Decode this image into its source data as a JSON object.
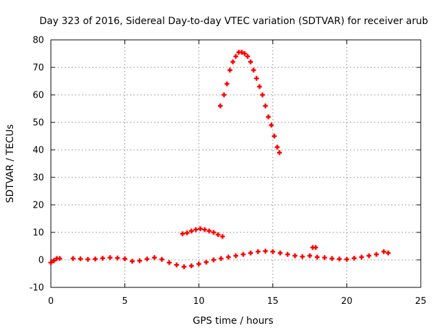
{
  "chart_data": {
    "type": "scatter",
    "title": "Day 323 of 2016, Sidereal Day-to-day VTEC variation (SDTVAR) for receiver arub",
    "xlabel": "GPS time / hours",
    "ylabel": "SDTVAR / TECUs",
    "xlim": [
      0,
      25
    ],
    "ylim": [
      -10,
      80
    ],
    "xticks": [
      0,
      5,
      10,
      15,
      20,
      25
    ],
    "yticks": [
      -10,
      0,
      10,
      20,
      30,
      40,
      50,
      60,
      70,
      80
    ],
    "grid": true,
    "marker": "plus",
    "color": "#ff0000",
    "series": [
      {
        "name": "SDTVAR",
        "points": [
          [
            0.0,
            -1.0
          ],
          [
            0.2,
            -0.3
          ],
          [
            0.4,
            0.5
          ],
          [
            0.6,
            0.5
          ],
          [
            1.5,
            0.5
          ],
          [
            2.0,
            0.4
          ],
          [
            2.5,
            0.2
          ],
          [
            3.0,
            0.3
          ],
          [
            3.5,
            0.6
          ],
          [
            4.0,
            0.8
          ],
          [
            4.5,
            0.7
          ],
          [
            5.0,
            0.4
          ],
          [
            5.5,
            -0.5
          ],
          [
            6.0,
            -0.3
          ],
          [
            6.5,
            0.3
          ],
          [
            7.0,
            0.8
          ],
          [
            7.5,
            0.2
          ],
          [
            8.0,
            -1.0
          ],
          [
            8.5,
            -1.8
          ],
          [
            9.0,
            -2.5
          ],
          [
            9.5,
            -2.2
          ],
          [
            10.0,
            -1.5
          ],
          [
            10.5,
            -0.8
          ],
          [
            11.0,
            0.0
          ],
          [
            11.5,
            0.5
          ],
          [
            12.0,
            1.0
          ],
          [
            12.5,
            1.5
          ],
          [
            13.0,
            2.0
          ],
          [
            13.5,
            2.5
          ],
          [
            14.0,
            3.0
          ],
          [
            14.5,
            3.2
          ],
          [
            15.0,
            3.0
          ],
          [
            15.5,
            2.5
          ],
          [
            16.0,
            2.0
          ],
          [
            16.5,
            1.5
          ],
          [
            17.0,
            1.2
          ],
          [
            17.5,
            1.5
          ],
          [
            18.0,
            1.0
          ],
          [
            18.5,
            0.8
          ],
          [
            19.0,
            0.5
          ],
          [
            19.5,
            0.3
          ],
          [
            20.0,
            0.2
          ],
          [
            20.5,
            0.6
          ],
          [
            21.0,
            1.0
          ],
          [
            21.5,
            1.5
          ],
          [
            22.0,
            2.0
          ],
          [
            22.5,
            3.0
          ],
          [
            22.8,
            2.5
          ],
          [
            17.7,
            4.5
          ],
          [
            17.9,
            4.5
          ],
          [
            8.9,
            9.5
          ],
          [
            9.2,
            9.8
          ],
          [
            9.5,
            10.5
          ],
          [
            9.8,
            11.0
          ],
          [
            10.1,
            11.3
          ],
          [
            10.4,
            11.0
          ],
          [
            10.7,
            10.5
          ],
          [
            11.0,
            10.0
          ],
          [
            11.3,
            9.2
          ],
          [
            11.6,
            8.5
          ],
          [
            11.45,
            56.0
          ],
          [
            11.7,
            60.0
          ],
          [
            11.9,
            64.0
          ],
          [
            12.1,
            69.0
          ],
          [
            12.3,
            72.0
          ],
          [
            12.5,
            74.0
          ],
          [
            12.7,
            75.5
          ],
          [
            12.9,
            75.5
          ],
          [
            13.1,
            75.0
          ],
          [
            13.3,
            74.0
          ],
          [
            13.5,
            72.0
          ],
          [
            13.7,
            69.0
          ],
          [
            13.9,
            66.0
          ],
          [
            14.1,
            63.0
          ],
          [
            14.3,
            60.0
          ],
          [
            14.5,
            56.0
          ],
          [
            14.7,
            52.0
          ],
          [
            14.9,
            49.0
          ],
          [
            15.1,
            45.0
          ],
          [
            15.3,
            41.0
          ],
          [
            15.45,
            39.0
          ]
        ]
      }
    ]
  }
}
